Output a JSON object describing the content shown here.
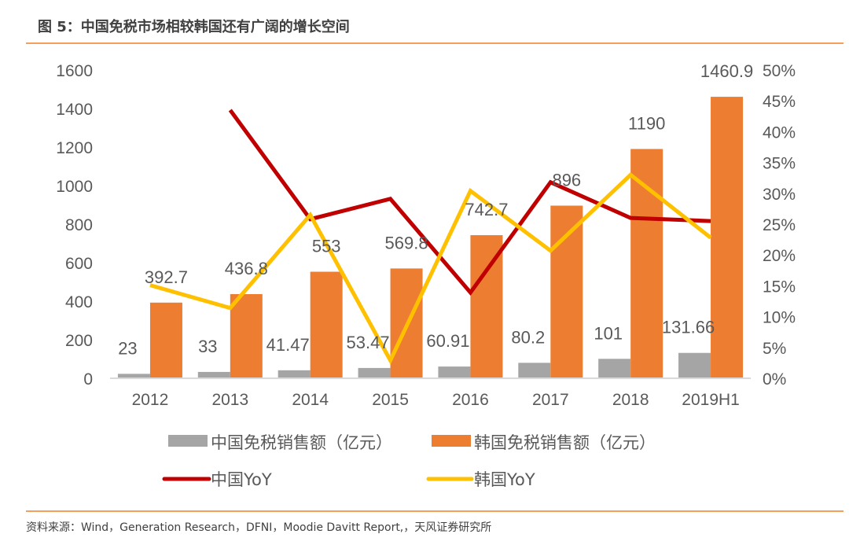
{
  "header": {
    "title": "图 5：中国免税市场相较韩国还有广阔的增长空间"
  },
  "footer": {
    "source": "资料来源：Wind，Generation Research，DFNI，Moodie Davitt Report,，天风证券研究所"
  },
  "chart_data": {
    "type": "bar",
    "title": "图 5：中国免税市场相较韩国还有广阔的增长空间",
    "xlabel": "",
    "ylabel": "",
    "categories": [
      "2012",
      "2013",
      "2014",
      "2015",
      "2016",
      "2017",
      "2018",
      "2019H1"
    ],
    "ylim": [
      0,
      1600
    ],
    "yticks": [
      "0",
      "200",
      "400",
      "600",
      "800",
      "1000",
      "1200",
      "1400",
      "1600"
    ],
    "y2lim": [
      0,
      50
    ],
    "y2ticks": [
      "0%",
      "5%",
      "10%",
      "15%",
      "20%",
      "25%",
      "30%",
      "35%",
      "40%",
      "45%",
      "50%"
    ],
    "grid": false,
    "legend_position": "bottom",
    "series": [
      {
        "name": "中国免税销售额（亿元）",
        "type": "bar",
        "axis": "left",
        "color": "#A5A5A5",
        "values": [
          23,
          33,
          41.47,
          53.47,
          60.91,
          80.2,
          101,
          131.66
        ],
        "labels": [
          "23",
          "33",
          "41.47",
          "53.47",
          "60.91",
          "80.2",
          "101",
          "131.66"
        ]
      },
      {
        "name": "韩国免税销售额（亿元）",
        "type": "bar",
        "axis": "left",
        "color": "#ED7D31",
        "values": [
          392.7,
          436.8,
          553,
          569.8,
          742.7,
          896,
          1190,
          1460.9
        ],
        "labels": [
          "392.7",
          "436.8",
          "553",
          "569.8",
          "742.7",
          "896",
          "1190",
          "1460.9"
        ]
      },
      {
        "name": "中国YoY",
        "type": "line",
        "axis": "right",
        "color": "#C00000",
        "values": [
          null,
          43.5,
          25.8,
          29.1,
          13.9,
          31.8,
          26.0,
          25.5
        ]
      },
      {
        "name": "韩国YoY",
        "type": "line",
        "axis": "right",
        "color": "#FFC000",
        "values": [
          15.1,
          11.4,
          26.5,
          2.9,
          30.4,
          20.7,
          33.0,
          22.8
        ]
      }
    ],
    "legend": [
      {
        "label": "中国免税销售额（亿元）",
        "marker": "box"
      },
      {
        "label": "韩国免税销售额（亿元）",
        "marker": "box"
      },
      {
        "label": "中国YoY",
        "marker": "line"
      },
      {
        "label": "韩国YoY",
        "marker": "line"
      }
    ]
  }
}
